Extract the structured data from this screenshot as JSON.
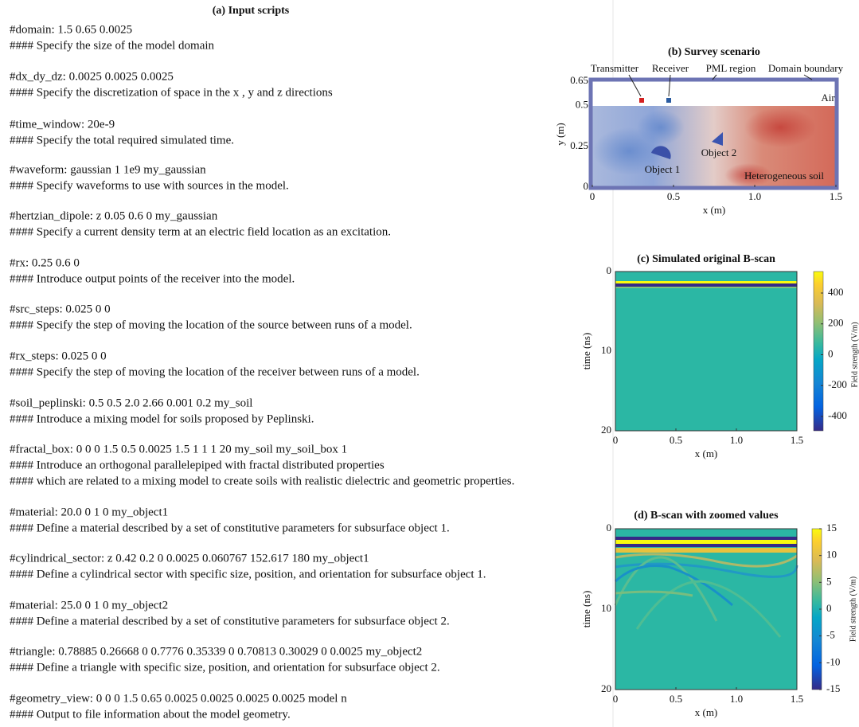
{
  "title_a": "(a) Input scripts",
  "script": [
    {
      "command": "#domain: 1.5 0.65 0.0025",
      "notes": [
        "#### Specify the size of the model domain"
      ]
    },
    {
      "command": "#dx_dy_dz: 0.0025 0.0025 0.0025",
      "notes": [
        "#### Specify the discretization of space in the x , y and z directions"
      ]
    },
    {
      "command": "#time_window: 20e-9",
      "notes": [
        "#### Specify the total required simulated time."
      ]
    },
    {
      "command": "#waveform: gaussian 1 1e9 my_gaussian",
      "notes": [
        "#### Specify waveforms to use with sources in the model."
      ]
    },
    {
      "command": "#hertzian_dipole: z 0.05 0.6 0 my_gaussian",
      "notes": [
        "#### Specify a current density term at an electric field location as an excitation."
      ]
    },
    {
      "command": "#rx: 0.25 0.6 0",
      "notes": [
        "#### Introduce output points of the receiver into the model."
      ]
    },
    {
      "command": "#src_steps: 0.025 0 0",
      "notes": [
        "#### Specify the step of moving the location of the source between runs of a model."
      ]
    },
    {
      "command": "#rx_steps: 0.025 0 0",
      "notes": [
        "#### Specify the step of moving the location of the receiver between runs of a model."
      ]
    },
    {
      "command": "#soil_peplinski: 0.5 0.5 2.0 2.66 0.001 0.2 my_soil",
      "notes": [
        "#### Introduce a mixing model for soils proposed by Peplinski."
      ]
    },
    {
      "command": "#fractal_box: 0 0 0 1.5 0.5 0.0025 1.5 1 1 1 20 my_soil my_soil_box 1",
      "notes": [
        "#### Introduce an orthogonal parallelepiped with fractal distributed properties",
        "#### which are related to a mixing model to create soils with realistic dielectric and geometric properties."
      ]
    },
    {
      "command": "#material: 20.0 0 1 0 my_object1",
      "notes": [
        "#### Define a material described by a set of constitutive parameters for subsurface object 1."
      ]
    },
    {
      "command": "#cylindrical_sector: z 0.42 0.2 0 0.0025 0.060767 152.617 180 my_object1",
      "notes": [
        "#### Define a cylindrical sector with specific size, position, and orientation for subsurface object 1."
      ]
    },
    {
      "command": "#material: 25.0 0 1 0 my_object2",
      "notes": [
        "#### Define a material described by a set of constitutive parameters for subsurface object 2."
      ]
    },
    {
      "command": "#triangle: 0.78885 0.26668 0 0.7776 0.35339 0 0.70813 0.30029 0 0.0025 my_object2",
      "notes": [
        "#### Define a triangle with specific size, position, and orientation for subsurface object 2."
      ]
    },
    {
      "command": "#geometry_view: 0 0 0 1.5 0.65 0.0025 0.0025 0.0025 0.0025 model n",
      "notes": [
        "#### Output to file information about the model geometry."
      ]
    }
  ],
  "survey": {
    "title": "(b) Survey scenario",
    "xlabel": "x (m)",
    "ylabel": "y (m)",
    "xticks": [
      "0",
      "0.5",
      "1.0",
      "1.5"
    ],
    "yticks": [
      "0",
      "0.25",
      "0.5",
      "0.65"
    ],
    "labels": {
      "transmitter": "Transmitter",
      "receiver": "Receiver",
      "pml": "PML region",
      "boundary": "Domain boundary",
      "air": "Air",
      "object1": "Object 1",
      "object2": "Object 2",
      "soil": "Heterogeneous soil"
    }
  },
  "bscan": {
    "title": "(c) Simulated original B-scan",
    "xlabel": "x (m)",
    "ylabel": "time (ns)",
    "xticks": [
      "0",
      "0.5",
      "1.0",
      "1.5"
    ],
    "yticks": [
      "0",
      "10",
      "20"
    ],
    "cticks": [
      "-400",
      "-200",
      "0",
      "200",
      "400"
    ],
    "clabel": "Field strength (V/m)"
  },
  "zoomed": {
    "title": "(d) B-scan with zoomed values",
    "xlabel": "x (m)",
    "ylabel": "time (ns)",
    "xticks": [
      "0",
      "0.5",
      "1.0",
      "1.5"
    ],
    "yticks": [
      "0",
      "10",
      "20"
    ],
    "cticks": [
      "-15",
      "-10",
      "-5",
      "0",
      "5",
      "10",
      "15"
    ],
    "clabel": "Field strength (V/m)"
  }
}
